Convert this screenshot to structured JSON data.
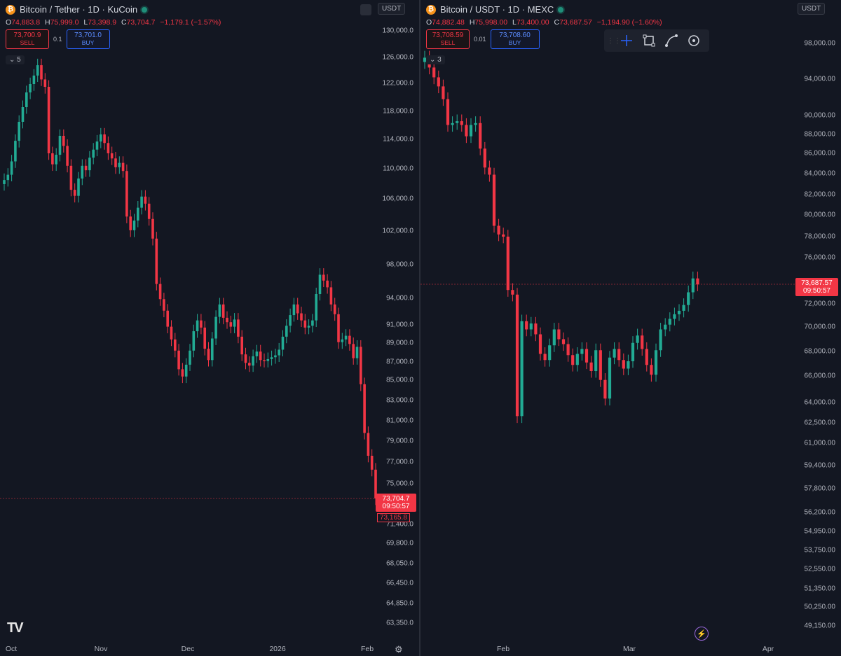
{
  "left": {
    "title": "Bitcoin / Tether · 1D · KuCoin",
    "coin_symbol": "₿",
    "ohlc": [
      {
        "label": "O",
        "value": "74,883.8"
      },
      {
        "label": "H",
        "value": "75,999.0"
      },
      {
        "label": "L",
        "value": "73,398.9"
      },
      {
        "label": "C",
        "value": "73,704.7"
      },
      {
        "label": "",
        "value": "−1,179.1 (−1.57%)"
      }
    ],
    "sell_price": "73,700.9",
    "sell_label": "SELL",
    "spread": "0.1",
    "buy_price": "73,701.0",
    "buy_label": "BUY",
    "collapse_count": "5",
    "symbol_box": "USDT",
    "price_tag": "73,704.7",
    "countdown": "09:50:57",
    "low_tag": "73,165.8",
    "y_axis": [
      "130,000.0",
      "126,000.0",
      "122,000.0",
      "118,000.0",
      "114,000.0",
      "110,000.0",
      "106,000.0",
      "102,000.0",
      "98,000.0",
      "94,000.0",
      "91,000.0",
      "89,000.0",
      "87,000.0",
      "85,000.0",
      "83,000.0",
      "81,000.0",
      "79,000.0",
      "77,000.0",
      "75,000.0",
      "71,400.0",
      "69,800.0",
      "68,050.0",
      "66,450.0",
      "64,850.0",
      "63,350.0"
    ],
    "x_axis": [
      "Oct",
      "Nov",
      "Dec",
      "2026",
      "Feb"
    ],
    "closes": [
      108500,
      109200,
      111000,
      113800,
      116500,
      118600,
      120700,
      121900,
      123200,
      124800,
      122600,
      121500,
      112100,
      110600,
      111900,
      114500,
      113100,
      110400,
      107200,
      106400,
      108700,
      110400,
      109800,
      111500,
      112600,
      113700,
      114700,
      113500,
      112100,
      111400,
      110200,
      110800,
      109700,
      103800,
      102100,
      103300,
      104900,
      106300,
      105400,
      103500,
      101100,
      95700,
      93900,
      92600,
      90800,
      89400,
      88200,
      86200,
      85400,
      86700,
      88200,
      90300,
      91500,
      90700,
      88400,
      87200,
      89500,
      91900,
      93300,
      91800,
      91300,
      90800,
      91600,
      89700,
      87800,
      86900,
      86600,
      87600,
      88100,
      87200,
      87100,
      87300,
      87500,
      87700,
      88300,
      89700,
      90900,
      92100,
      93300,
      92300,
      91500,
      90700,
      90900,
      91500,
      94500,
      96800,
      96100,
      95300,
      93300,
      92200,
      89100,
      89400,
      89800,
      88900,
      87400,
      88600,
      84600,
      79800,
      77600,
      76300,
      73704
    ]
  },
  "right": {
    "title": "Bitcoin / USDT · 1D · MEXC",
    "coin_symbol": "₿",
    "ohlc": [
      {
        "label": "O",
        "value": "74,882.48"
      },
      {
        "label": "H",
        "value": "75,998.00"
      },
      {
        "label": "L",
        "value": "73,400.00"
      },
      {
        "label": "C",
        "value": "73,687.57"
      },
      {
        "label": "",
        "value": "−1,194.90 (−1.60%)"
      }
    ],
    "sell_price": "73,708.59",
    "sell_label": "SELL",
    "spread": "0.01",
    "buy_price": "73,708.60",
    "buy_label": "BUY",
    "collapse_count": "3",
    "symbol_box": "USDT",
    "price_tag": "73,687.57",
    "countdown": "09:50:57",
    "y_axis": [
      "98,000.00",
      "94,000.00",
      "90,000.00",
      "88,000.00",
      "86,000.00",
      "84,000.00",
      "82,000.00",
      "80,000.00",
      "78,000.00",
      "76,000.00",
      "72,000.00",
      "70,000.00",
      "68,000.00",
      "66,000.00",
      "64,000.00",
      "62,500.00",
      "61,000.00",
      "59,400.00",
      "57,800.00",
      "56,200.00",
      "54,950.00",
      "53,750.00",
      "52,550.00",
      "51,350.00",
      "50,250.00",
      "49,150.00"
    ],
    "x_axis": [
      "Feb",
      "Mar",
      "Apr"
    ],
    "toolbar_icons": [
      "crosshair-icon",
      "rectangle-icon",
      "path-icon",
      "target-icon"
    ],
    "closes": [
      96400,
      95300,
      94200,
      93200,
      91800,
      89000,
      89200,
      89400,
      89000,
      87800,
      89000,
      89200,
      86500,
      84600,
      83900,
      79000,
      78200,
      78000,
      73200,
      72800,
      63000,
      70500,
      69800,
      70300,
      69400,
      67800,
      67300,
      68500,
      69800,
      69000,
      68600,
      67700,
      66900,
      67800,
      68200,
      67100,
      66400,
      68100,
      65700,
      64300,
      67500,
      68200,
      67300,
      66600,
      67200,
      68700,
      69300,
      68200,
      66900,
      66100,
      68100,
      69800,
      70200,
      70700,
      71100,
      71400,
      71900,
      73000,
      74200,
      73687
    ]
  },
  "colors": {
    "up": "#22ab94",
    "down": "#f23645",
    "background": "#131722",
    "text": "#b2b5be"
  }
}
